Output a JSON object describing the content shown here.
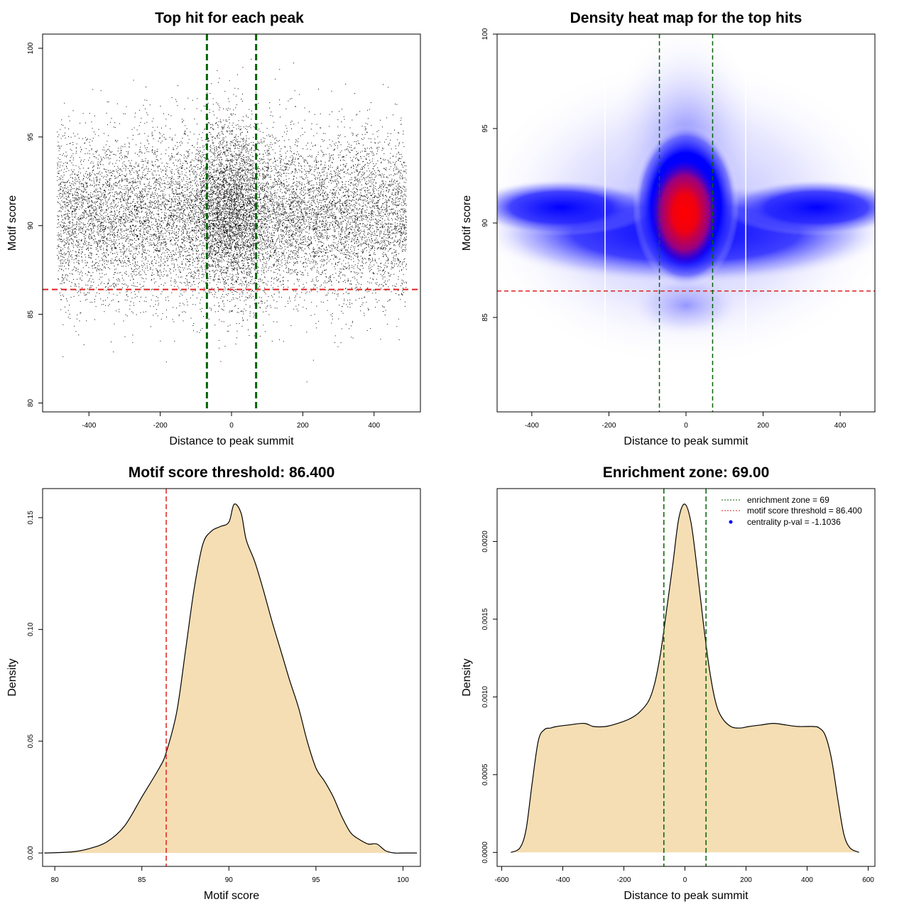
{
  "colors": {
    "threshold_red": "#dd2222",
    "zone_green": "#006400",
    "fill_wheat": "#f5deb3",
    "heat_blue": "#0000ff",
    "heat_red": "#ff0000",
    "points": "#000000",
    "centrality_blue": "#0000ff"
  },
  "chart_data": [
    {
      "id": "scatter",
      "type": "scatter",
      "title": "Top hit for each peak",
      "xlabel": "Distance to peak summit",
      "ylabel": "Motif score",
      "xlim": [
        -530,
        530
      ],
      "ylim": [
        79.5,
        100.8
      ],
      "xticks": [
        -400,
        -200,
        0,
        200,
        400
      ],
      "yticks": [
        80,
        85,
        90,
        95,
        100
      ],
      "x_range": [
        -490,
        490
      ],
      "score_mode": 90.5,
      "point_count": 14000,
      "threshold": 86.4,
      "enrichment_zone": [
        -69,
        69
      ]
    },
    {
      "id": "heatmap",
      "type": "heatmap",
      "title": "Density heat map for the top hits",
      "xlabel": "Distance to peak summit",
      "ylabel": "Motif score",
      "xlim": [
        -490,
        490
      ],
      "ylim": [
        80,
        100
      ],
      "xticks": [
        -400,
        -200,
        0,
        200,
        400
      ],
      "yticks": [
        85,
        90,
        95,
        100
      ],
      "hotspot": {
        "x": 0,
        "y": 91.2
      },
      "band_score": 90.2,
      "threshold": 86.4,
      "enrichment_zone": [
        -69,
        69
      ],
      "white_lines_x": [
        -210,
        155
      ]
    },
    {
      "id": "score-density",
      "type": "area",
      "title": "Motif score threshold: 86.400",
      "xlabel": "Motif score",
      "ylabel": "Density",
      "xlim": [
        79.3,
        101.0
      ],
      "ylim": [
        -0.006,
        0.163
      ],
      "xticks": [
        80,
        85,
        90,
        95,
        100
      ],
      "yticks": [
        0.0,
        0.05,
        0.1,
        0.15
      ],
      "ytick_labels": [
        "0.00",
        "0.05",
        "0.10",
        "0.15"
      ],
      "x": [
        79.4,
        81,
        82,
        83,
        84,
        85,
        86,
        86.4,
        87,
        87.5,
        88,
        88.5,
        89,
        89.5,
        90,
        90.3,
        90.7,
        91,
        91.5,
        92,
        92.5,
        93,
        93.5,
        94,
        94.5,
        95,
        95.5,
        96,
        96.5,
        97,
        97.5,
        98,
        98.5,
        99,
        99.5,
        100,
        100.8
      ],
      "y": [
        0.0,
        0.0005,
        0.002,
        0.005,
        0.012,
        0.025,
        0.038,
        0.045,
        0.063,
        0.09,
        0.118,
        0.138,
        0.144,
        0.146,
        0.148,
        0.156,
        0.152,
        0.14,
        0.13,
        0.117,
        0.103,
        0.09,
        0.077,
        0.065,
        0.05,
        0.038,
        0.032,
        0.025,
        0.016,
        0.009,
        0.006,
        0.004,
        0.004,
        0.001,
        0.0,
        0.0,
        0.0
      ],
      "threshold": 86.4
    },
    {
      "id": "distance-density",
      "type": "area",
      "title": "Enrichment zone: 69.00",
      "xlabel": "Distance to peak summit",
      "ylabel": "Density",
      "xlim": [
        -615,
        622
      ],
      "ylim": [
        -9e-05,
        0.00234
      ],
      "xticks": [
        -600,
        -400,
        -200,
        0,
        200,
        400,
        600
      ],
      "yticks": [
        0.0,
        0.0005,
        0.001,
        0.0015,
        0.002
      ],
      "ytick_labels": [
        "0.0000",
        "0.0005",
        "0.0010",
        "0.0015",
        "0.0020"
      ],
      "x": [
        -570,
        -540,
        -520,
        -500,
        -480,
        -460,
        -440,
        -420,
        -380,
        -330,
        -300,
        -260,
        -220,
        -180,
        -150,
        -120,
        -100,
        -80,
        -60,
        -40,
        -20,
        0,
        20,
        40,
        60,
        80,
        100,
        120,
        150,
        180,
        210,
        250,
        290,
        330,
        370,
        420,
        440,
        460,
        480,
        500,
        520,
        540,
        570
      ],
      "y": [
        0.0,
        3e-05,
        0.00015,
        0.00045,
        0.00072,
        0.00079,
        0.0008,
        0.00081,
        0.00082,
        0.00083,
        0.00081,
        0.00081,
        0.00083,
        0.00086,
        0.0009,
        0.00097,
        0.00108,
        0.00128,
        0.00156,
        0.00185,
        0.00215,
        0.00224,
        0.00212,
        0.00182,
        0.00148,
        0.00118,
        0.00097,
        0.00087,
        0.00081,
        0.0008,
        0.00081,
        0.00082,
        0.00083,
        0.00082,
        0.00081,
        0.00081,
        0.0008,
        0.00075,
        0.0006,
        0.00035,
        0.00012,
        3e-05,
        0.0
      ],
      "enrichment_zone": [
        -69,
        69
      ],
      "legend": [
        {
          "label": "enrichment zone = 69",
          "style": "dotted",
          "color": "#006400"
        },
        {
          "label": "motif score threshold = 86.400",
          "style": "dotted",
          "color": "#dd2222"
        },
        {
          "label": "centrality p-val = -1.1036",
          "style": "point",
          "color": "#0000ff"
        }
      ]
    }
  ]
}
